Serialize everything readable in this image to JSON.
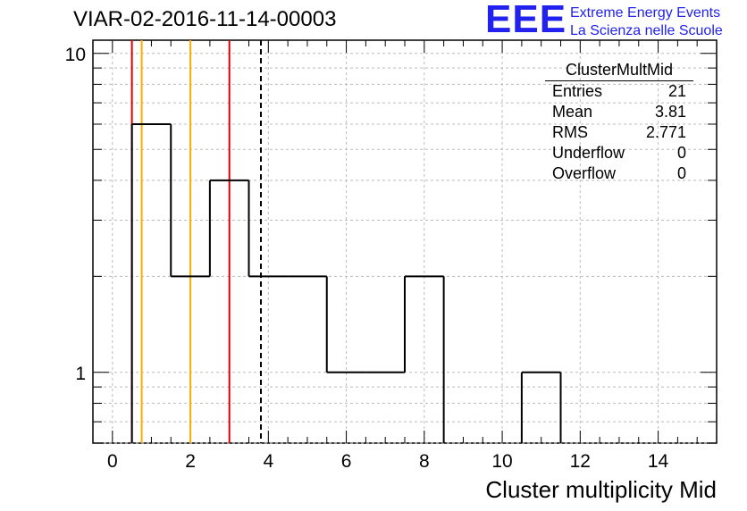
{
  "title": "VIAR-02-2016-11-14-00003",
  "logo": {
    "mark": "EEE",
    "line1": "Extreme Energy Events",
    "line2": "La Scienza nelle Scuole",
    "color": "#2222ee"
  },
  "stats_box": {
    "title": "ClusterMultMid",
    "rows": [
      {
        "label": "Entries",
        "value": "21"
      },
      {
        "label": "Mean",
        "value": "3.81"
      },
      {
        "label": "RMS",
        "value": "2.771"
      },
      {
        "label": "Underflow",
        "value": "0"
      },
      {
        "label": "Overflow",
        "value": "0"
      }
    ]
  },
  "chart_data": {
    "type": "bar",
    "subtype": "histogram-step",
    "xlabel": "Cluster multiplicity Mid",
    "ylabel": "",
    "xlim": [
      -0.5,
      15.5
    ],
    "ylim": [
      0.6,
      11
    ],
    "y_scale": "log",
    "grid": true,
    "bin_width": 1,
    "bins": [
      {
        "center": 1,
        "count": 6
      },
      {
        "center": 2,
        "count": 2
      },
      {
        "center": 3,
        "count": 4
      },
      {
        "center": 4,
        "count": 2
      },
      {
        "center": 5,
        "count": 2
      },
      {
        "center": 6,
        "count": 1
      },
      {
        "center": 7,
        "count": 1
      },
      {
        "center": 8,
        "count": 2
      },
      {
        "center": 9,
        "count": 0
      },
      {
        "center": 10,
        "count": 0
      },
      {
        "center": 11,
        "count": 1
      }
    ],
    "x_ticks": [
      "0",
      "2",
      "4",
      "6",
      "8",
      "10",
      "12",
      "14"
    ],
    "x_tick_values": [
      0,
      2,
      4,
      6,
      8,
      10,
      12,
      14
    ],
    "y_ticks": [
      "1",
      "10"
    ],
    "y_tick_values": [
      1,
      10
    ],
    "vertical_lines": [
      {
        "x": 0.5,
        "color": "#dd0000",
        "style": "solid"
      },
      {
        "x": 3.0,
        "color": "#dd0000",
        "style": "solid"
      },
      {
        "x": 0.75,
        "color": "#ffaa00",
        "style": "solid"
      },
      {
        "x": 2.0,
        "color": "#ffaa00",
        "style": "solid"
      },
      {
        "x": 3.81,
        "color": "#000000",
        "style": "dashed"
      }
    ],
    "line_color": "#000000"
  }
}
